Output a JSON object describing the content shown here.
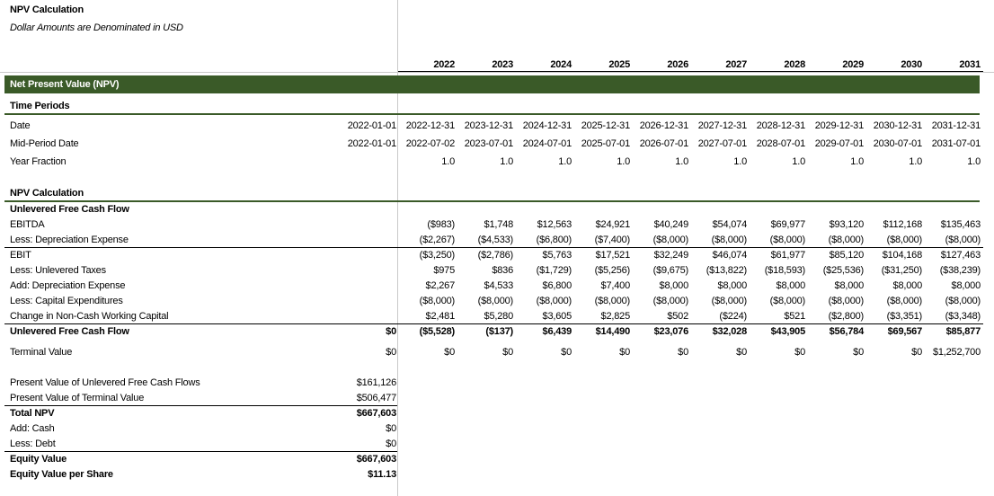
{
  "title": "NPV Calculation",
  "subtitle": "Dollar Amounts are Denominated in USD",
  "years": [
    "2022",
    "2023",
    "2024",
    "2025",
    "2026",
    "2027",
    "2028",
    "2029",
    "2030",
    "2031"
  ],
  "section_header": "Net Present Value (NPV)",
  "time_periods": {
    "label": "Time Periods",
    "rows": [
      {
        "label": "Date",
        "a": "2022-01-01",
        "cells": [
          "2022-12-31",
          "2023-12-31",
          "2024-12-31",
          "2025-12-31",
          "2026-12-31",
          "2027-12-31",
          "2028-12-31",
          "2029-12-31",
          "2030-12-31",
          "2031-12-31"
        ]
      },
      {
        "label": "Mid-Period Date",
        "a": "2022-01-01",
        "cells": [
          "2022-07-02",
          "2023-07-01",
          "2024-07-01",
          "2025-07-01",
          "2026-07-01",
          "2027-07-01",
          "2028-07-01",
          "2029-07-01",
          "2030-07-01",
          "2031-07-01"
        ]
      },
      {
        "label": "Year Fraction",
        "a": "",
        "cells": [
          "1.0",
          "1.0",
          "1.0",
          "1.0",
          "1.0",
          "1.0",
          "1.0",
          "1.0",
          "1.0",
          "1.0"
        ]
      }
    ]
  },
  "npv_calc": {
    "label": "NPV Calculation",
    "ufcf_header": "Unlevered Free Cash Flow",
    "rows": [
      {
        "label": "EBITDA",
        "a": "",
        "cells": [
          "($983)",
          "$1,748",
          "$12,563",
          "$24,921",
          "$40,249",
          "$54,074",
          "$69,977",
          "$93,120",
          "$112,168",
          "$135,463"
        ]
      },
      {
        "label": "Less: Depreciation Expense",
        "a": "",
        "cells": [
          "($2,267)",
          "($4,533)",
          "($6,800)",
          "($7,400)",
          "($8,000)",
          "($8,000)",
          "($8,000)",
          "($8,000)",
          "($8,000)",
          "($8,000)"
        ]
      },
      {
        "label": "EBIT",
        "a": "",
        "cells": [
          "($3,250)",
          "($2,786)",
          "$5,763",
          "$17,521",
          "$32,249",
          "$46,074",
          "$61,977",
          "$85,120",
          "$104,168",
          "$127,463"
        ]
      },
      {
        "label": "Less: Unlevered Taxes",
        "a": "",
        "cells": [
          "$975",
          "$836",
          "($1,729)",
          "($5,256)",
          "($9,675)",
          "($13,822)",
          "($18,593)",
          "($25,536)",
          "($31,250)",
          "($38,239)"
        ]
      },
      {
        "label": "Add: Depreciation Expense",
        "a": "",
        "cells": [
          "$2,267",
          "$4,533",
          "$6,800",
          "$7,400",
          "$8,000",
          "$8,000",
          "$8,000",
          "$8,000",
          "$8,000",
          "$8,000"
        ]
      },
      {
        "label": "Less: Capital Expenditures",
        "a": "",
        "cells": [
          "($8,000)",
          "($8,000)",
          "($8,000)",
          "($8,000)",
          "($8,000)",
          "($8,000)",
          "($8,000)",
          "($8,000)",
          "($8,000)",
          "($8,000)"
        ]
      },
      {
        "label": "Change in Non-Cash Working Capital",
        "a": "",
        "cells": [
          "$2,481",
          "$5,280",
          "$3,605",
          "$2,825",
          "$502",
          "($224)",
          "$521",
          "($2,800)",
          "($3,351)",
          "($3,348)"
        ]
      },
      {
        "label": "Unlevered Free Cash Flow",
        "a": "$0",
        "cells": [
          "($5,528)",
          "($137)",
          "$6,439",
          "$14,490",
          "$23,076",
          "$32,028",
          "$43,905",
          "$56,784",
          "$69,567",
          "$85,877"
        ]
      }
    ],
    "terminal": {
      "label": "Terminal Value",
      "a": "$0",
      "cells": [
        "$0",
        "$0",
        "$0",
        "$0",
        "$0",
        "$0",
        "$0",
        "$0",
        "$0",
        "$1,252,700"
      ]
    }
  },
  "summary": [
    {
      "label": "Present Value of Unlevered Free Cash Flows",
      "value": "$161,126"
    },
    {
      "label": "Present Value of Terminal Value",
      "value": "$506,477"
    },
    {
      "label": "Total NPV",
      "value": "$667,603"
    },
    {
      "label": "Add: Cash",
      "value": "$0"
    },
    {
      "label": "Less: Debt",
      "value": "$0"
    },
    {
      "label": "Equity Value",
      "value": "$667,603"
    },
    {
      "label": "Equity Value per Share",
      "value": "$11.13"
    }
  ]
}
